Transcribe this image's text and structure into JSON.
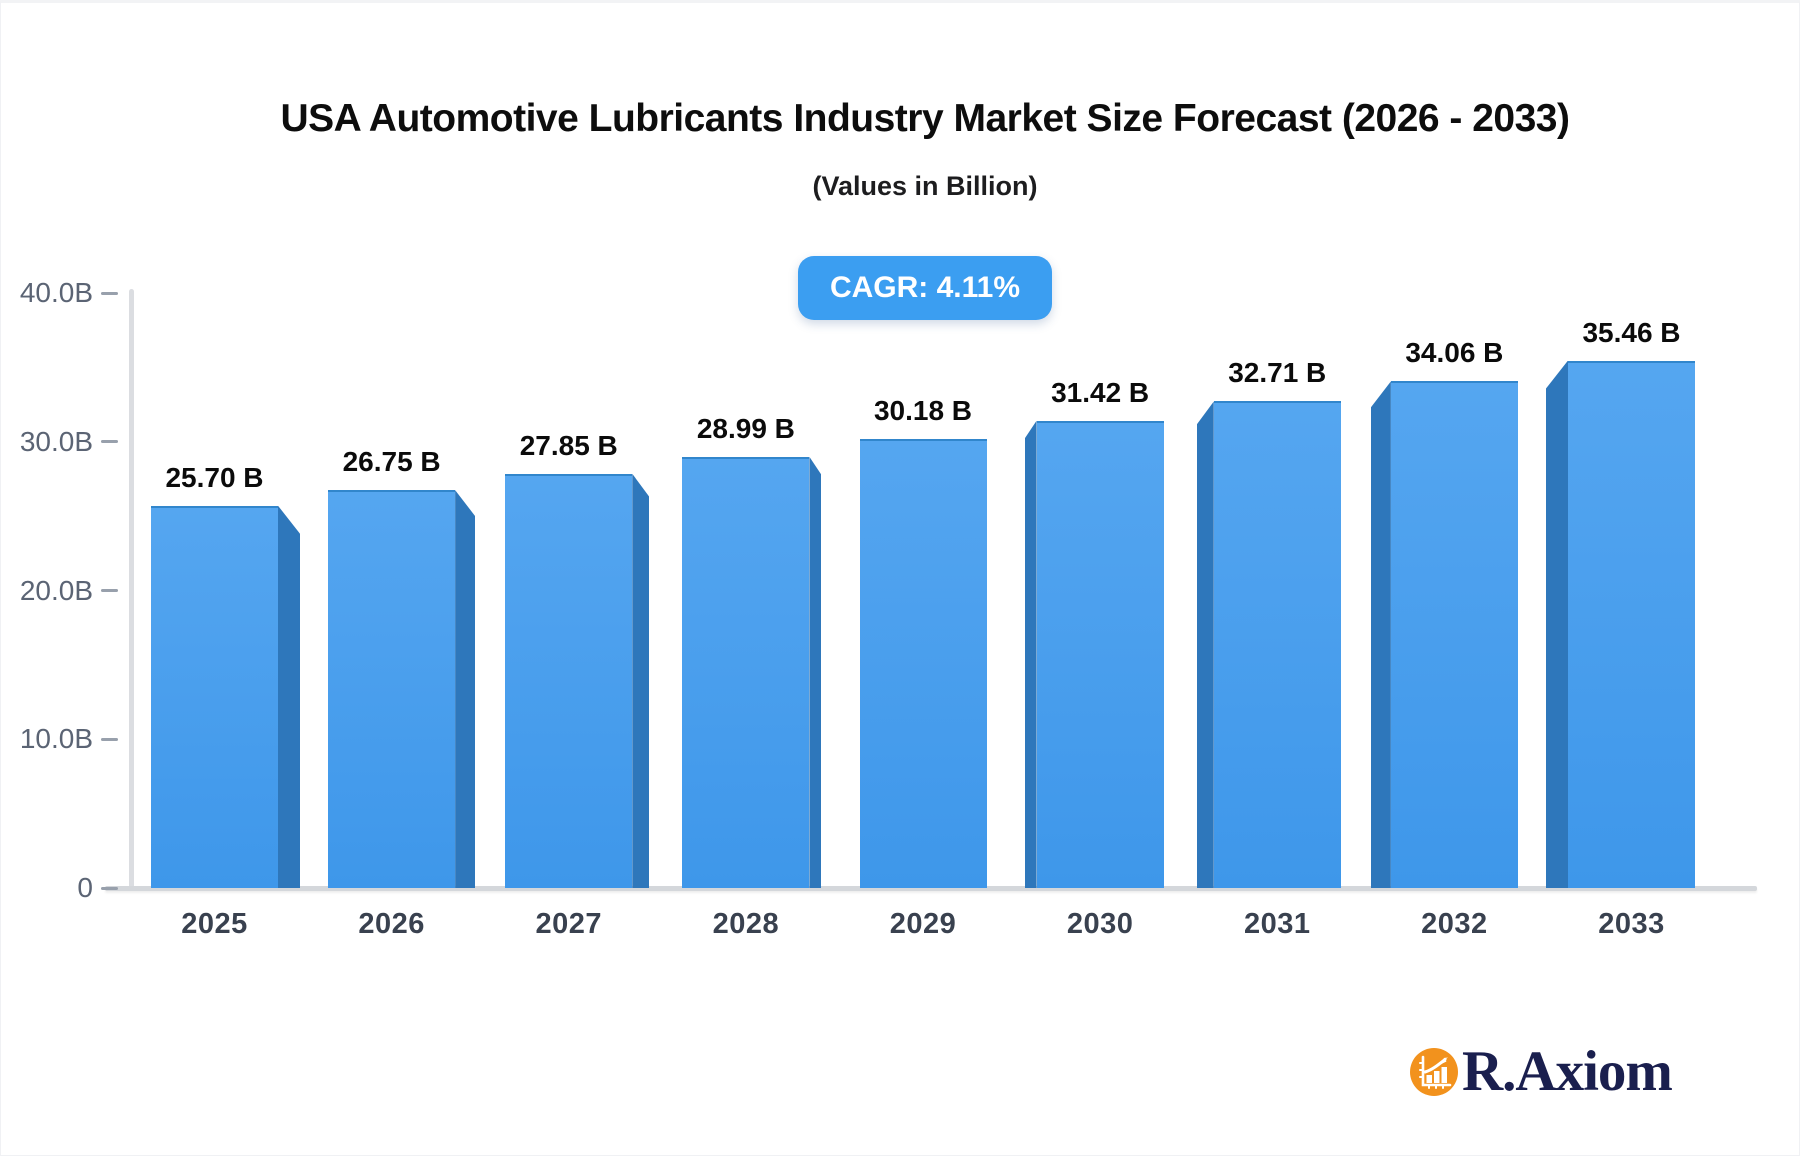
{
  "header": {
    "title": "USA Automotive Lubricants Industry Market Size Forecast (2026 - 2033)",
    "subtitle": "(Values in Billion)"
  },
  "badge": {
    "label": "CAGR: 4.11%"
  },
  "chart_data": {
    "type": "bar",
    "title": "USA Automotive Lubricants Industry Market Size Forecast (2026 - 2033)",
    "subtitle": "(Values in Billion)",
    "cagr_label": "CAGR: 4.11%",
    "categories": [
      "2025",
      "2026",
      "2027",
      "2028",
      "2029",
      "2030",
      "2031",
      "2032",
      "2033"
    ],
    "values": [
      25.7,
      26.75,
      27.85,
      28.99,
      30.18,
      31.42,
      32.71,
      34.06,
      35.46
    ],
    "value_labels": [
      "25.70 B",
      "26.75 B",
      "27.85 B",
      "28.99 B",
      "30.18 B",
      "31.42 B",
      "32.71 B",
      "34.06 B",
      "35.46 B"
    ],
    "unit": "Billion USD",
    "xlabel": "",
    "ylabel": "",
    "ylim": [
      0,
      40
    ],
    "yticks": [
      {
        "label": "40.0B",
        "value": 40
      },
      {
        "label": "30.0B",
        "value": 30
      },
      {
        "label": "20.0B",
        "value": 20
      },
      {
        "label": "10.0B",
        "value": 10
      },
      {
        "label": "0",
        "value": 0
      }
    ],
    "grid": false,
    "legend": false,
    "style": "3d-bevel-bars"
  },
  "colors": {
    "accent": "#3B9EF1",
    "bar_top": "#55A6F0",
    "bar_bottom": "#3E97EA",
    "bar_side": "#2E77BB",
    "bar_edge": "#3186CC",
    "axis": "#DBDDE1",
    "baseline": "#D4D7DB",
    "tick": "#98A0AC",
    "y_label": "#5B6474",
    "x_label": "#39414F",
    "value_label": "#0B0B0B",
    "title": "#0D0D0D",
    "logo_orange": "#F2921D",
    "logo_navy": "#1A1F4E"
  },
  "branding": {
    "name": "R.Axiom",
    "icon": "bar-chart-growth-icon"
  }
}
